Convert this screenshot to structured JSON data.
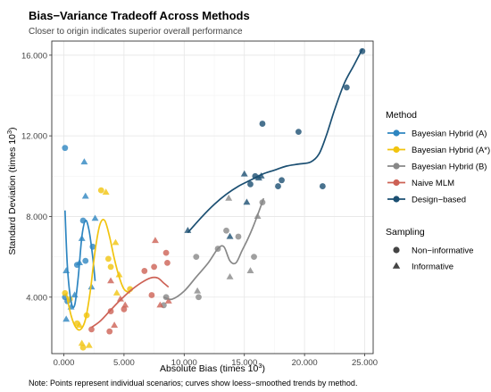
{
  "chart_data": {
    "type": "scatter",
    "title": "Bias−Variance Tradeoff Across Methods",
    "subtitle": "Closer to origin indicates superior overall performance",
    "xlabel": "Absolute Bias (times 10",
    "xlabel_sup": "3",
    "xlabel_end": ")",
    "ylabel": "Standard Deviation (times 10",
    "ylabel_sup": "3",
    "ylabel_end": ")",
    "caption": "Note: Points represent individual scenarios; curves show loess−smoothed trends by method.",
    "xlim": [
      -1000,
      25700
    ],
    "ylim": [
      1200,
      16700
    ],
    "x_ticks": [
      0,
      5000,
      10000,
      15000,
      20000,
      25000
    ],
    "x_tick_labels": [
      "0.000",
      "5.000",
      "10.000",
      "15.000",
      "20.000",
      "25.000"
    ],
    "y_ticks": [
      4000,
      8000,
      12000,
      16000
    ],
    "y_tick_labels": [
      "4.000",
      "8.000",
      "12.000",
      "16.000"
    ],
    "grid": true,
    "legend_placement": "right",
    "legend_method_title": "Method",
    "legend_sampling_title": "Sampling",
    "sampling_levels": [
      {
        "label": "Non−informative",
        "shape": "circle"
      },
      {
        "label": "Informative",
        "shape": "triangle"
      }
    ],
    "series": [
      {
        "name": "Bayesian Hybrid (A)",
        "color": "#2E86C1",
        "points": [
          {
            "x": 100,
            "y": 11400,
            "s": "circle"
          },
          {
            "x": 200,
            "y": 5300,
            "s": "triangle"
          },
          {
            "x": 100,
            "y": 4000,
            "s": "circle"
          },
          {
            "x": 300,
            "y": 3800,
            "s": "circle"
          },
          {
            "x": 200,
            "y": 2900,
            "s": "triangle"
          },
          {
            "x": 600,
            "y": 3500,
            "s": "triangle"
          },
          {
            "x": 900,
            "y": 4100,
            "s": "triangle"
          },
          {
            "x": 1100,
            "y": 5600,
            "s": "circle"
          },
          {
            "x": 1300,
            "y": 5700,
            "s": "triangle"
          },
          {
            "x": 1500,
            "y": 6900,
            "s": "triangle"
          },
          {
            "x": 1600,
            "y": 7800,
            "s": "circle"
          },
          {
            "x": 1700,
            "y": 10700,
            "s": "triangle"
          },
          {
            "x": 1800,
            "y": 9000,
            "s": "triangle"
          },
          {
            "x": 1800,
            "y": 5800,
            "s": "circle"
          },
          {
            "x": 2300,
            "y": 4500,
            "s": "triangle"
          },
          {
            "x": 2400,
            "y": 6500,
            "s": "circle"
          },
          {
            "x": 2600,
            "y": 7900,
            "s": "triangle"
          }
        ],
        "curve": [
          [
            100,
            8300
          ],
          [
            300,
            5500
          ],
          [
            600,
            3800
          ],
          [
            900,
            3600
          ],
          [
            1200,
            5000
          ],
          [
            1500,
            7000
          ],
          [
            1800,
            7800
          ],
          [
            2100,
            7300
          ],
          [
            2400,
            6000
          ],
          [
            2600,
            4800
          ]
        ]
      },
      {
        "name": "Bayesian Hybrid (A*)",
        "color": "#F1C40F",
        "points": [
          {
            "x": 100,
            "y": 4200,
            "s": "circle"
          },
          {
            "x": 500,
            "y": 3900,
            "s": "circle"
          },
          {
            "x": 1100,
            "y": 2700,
            "s": "circle"
          },
          {
            "x": 1300,
            "y": 2600,
            "s": "triangle"
          },
          {
            "x": 1500,
            "y": 1700,
            "s": "triangle"
          },
          {
            "x": 1600,
            "y": 1500,
            "s": "circle"
          },
          {
            "x": 2100,
            "y": 1600,
            "s": "triangle"
          },
          {
            "x": 1900,
            "y": 3100,
            "s": "circle"
          },
          {
            "x": 3100,
            "y": 9300,
            "s": "circle"
          },
          {
            "x": 3500,
            "y": 9200,
            "s": "triangle"
          },
          {
            "x": 3700,
            "y": 5900,
            "s": "circle"
          },
          {
            "x": 3900,
            "y": 5500,
            "s": "circle"
          },
          {
            "x": 4300,
            "y": 6700,
            "s": "triangle"
          },
          {
            "x": 4400,
            "y": 4200,
            "s": "triangle"
          },
          {
            "x": 4600,
            "y": 5100,
            "s": "triangle"
          },
          {
            "x": 5500,
            "y": 4400,
            "s": "circle"
          }
        ],
        "curve": [
          [
            200,
            4200
          ],
          [
            600,
            3100
          ],
          [
            1000,
            2500
          ],
          [
            1400,
            2400
          ],
          [
            1800,
            2900
          ],
          [
            2200,
            4300
          ],
          [
            2600,
            6300
          ],
          [
            3000,
            7600
          ],
          [
            3400,
            7800
          ],
          [
            3800,
            7000
          ],
          [
            4200,
            5900
          ],
          [
            4600,
            5000
          ],
          [
            5000,
            4400
          ],
          [
            5500,
            4200
          ]
        ]
      },
      {
        "name": "Bayesian Hybrid (B)",
        "color": "#888888",
        "points": [
          {
            "x": 8300,
            "y": 3600,
            "s": "circle"
          },
          {
            "x": 8500,
            "y": 4000,
            "s": "circle"
          },
          {
            "x": 11000,
            "y": 6000,
            "s": "circle"
          },
          {
            "x": 11100,
            "y": 4300,
            "s": "triangle"
          },
          {
            "x": 11200,
            "y": 4000,
            "s": "circle"
          },
          {
            "x": 12800,
            "y": 6400,
            "s": "circle"
          },
          {
            "x": 13500,
            "y": 7300,
            "s": "circle"
          },
          {
            "x": 13700,
            "y": 8900,
            "s": "triangle"
          },
          {
            "x": 13800,
            "y": 5000,
            "s": "triangle"
          },
          {
            "x": 14500,
            "y": 7000,
            "s": "circle"
          },
          {
            "x": 15500,
            "y": 5300,
            "s": "triangle"
          },
          {
            "x": 15800,
            "y": 6000,
            "s": "circle"
          },
          {
            "x": 16100,
            "y": 8000,
            "s": "triangle"
          },
          {
            "x": 16500,
            "y": 8700,
            "s": "circle"
          }
        ],
        "curve": [
          [
            8300,
            4000
          ],
          [
            9000,
            3900
          ],
          [
            10000,
            4300
          ],
          [
            11000,
            5000
          ],
          [
            12000,
            5700
          ],
          [
            12800,
            6400
          ],
          [
            13300,
            6500
          ],
          [
            13800,
            5800
          ],
          [
            14300,
            5700
          ],
          [
            14800,
            6300
          ],
          [
            15300,
            6900
          ],
          [
            15800,
            7600
          ],
          [
            16300,
            8400
          ],
          [
            16600,
            8900
          ]
        ]
      },
      {
        "name": "Naive MLM",
        "color": "#CD6155",
        "points": [
          {
            "x": 2300,
            "y": 2400,
            "s": "circle"
          },
          {
            "x": 3800,
            "y": 2300,
            "s": "circle"
          },
          {
            "x": 4200,
            "y": 2600,
            "s": "triangle"
          },
          {
            "x": 3900,
            "y": 3300,
            "s": "circle"
          },
          {
            "x": 3900,
            "y": 4800,
            "s": "triangle"
          },
          {
            "x": 4700,
            "y": 3900,
            "s": "triangle"
          },
          {
            "x": 5000,
            "y": 3400,
            "s": "circle"
          },
          {
            "x": 5100,
            "y": 3600,
            "s": "triangle"
          },
          {
            "x": 6700,
            "y": 5300,
            "s": "circle"
          },
          {
            "x": 7300,
            "y": 4100,
            "s": "circle"
          },
          {
            "x": 7500,
            "y": 5500,
            "s": "circle"
          },
          {
            "x": 7600,
            "y": 6800,
            "s": "triangle"
          },
          {
            "x": 8500,
            "y": 6200,
            "s": "circle"
          },
          {
            "x": 8600,
            "y": 5700,
            "s": "circle"
          },
          {
            "x": 8700,
            "y": 3800,
            "s": "triangle"
          },
          {
            "x": 8000,
            "y": 3600,
            "s": "triangle"
          }
        ],
        "curve": [
          [
            2300,
            2500
          ],
          [
            3000,
            2800
          ],
          [
            3800,
            3300
          ],
          [
            4600,
            3800
          ],
          [
            5500,
            4300
          ],
          [
            6400,
            4700
          ],
          [
            7200,
            4950
          ],
          [
            7800,
            4950
          ],
          [
            8300,
            4700
          ],
          [
            8700,
            4500
          ]
        ]
      },
      {
        "name": "Design−based",
        "color": "#1B4F72",
        "points": [
          {
            "x": 10300,
            "y": 7300,
            "s": "triangle"
          },
          {
            "x": 13800,
            "y": 7000,
            "s": "triangle"
          },
          {
            "x": 15000,
            "y": 10100,
            "s": "triangle"
          },
          {
            "x": 15200,
            "y": 8700,
            "s": "triangle"
          },
          {
            "x": 15500,
            "y": 9600,
            "s": "circle"
          },
          {
            "x": 15900,
            "y": 10000,
            "s": "circle"
          },
          {
            "x": 16200,
            "y": 9900,
            "s": "triangle"
          },
          {
            "x": 16400,
            "y": 10000,
            "s": "triangle"
          },
          {
            "x": 16500,
            "y": 12600,
            "s": "circle"
          },
          {
            "x": 17800,
            "y": 9500,
            "s": "circle"
          },
          {
            "x": 18100,
            "y": 9800,
            "s": "circle"
          },
          {
            "x": 19500,
            "y": 12200,
            "s": "circle"
          },
          {
            "x": 21500,
            "y": 9500,
            "s": "circle"
          },
          {
            "x": 23500,
            "y": 14400,
            "s": "circle"
          },
          {
            "x": 24800,
            "y": 16200,
            "s": "circle"
          }
        ],
        "curve": [
          [
            10300,
            7200
          ],
          [
            11500,
            8000
          ],
          [
            12500,
            8600
          ],
          [
            13500,
            9100
          ],
          [
            14500,
            9500
          ],
          [
            15500,
            9800
          ],
          [
            16500,
            10100
          ],
          [
            17500,
            10300
          ],
          [
            18500,
            10500
          ],
          [
            19500,
            10600
          ],
          [
            20500,
            10700
          ],
          [
            21200,
            11100
          ],
          [
            21800,
            12000
          ],
          [
            22500,
            13300
          ],
          [
            23300,
            14600
          ],
          [
            24100,
            15500
          ],
          [
            24800,
            16300
          ]
        ]
      }
    ]
  }
}
